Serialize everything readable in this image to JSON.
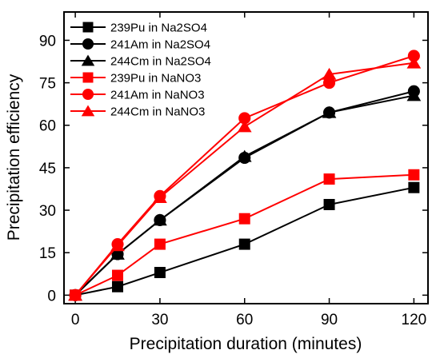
{
  "chart_data": {
    "type": "line",
    "title": "",
    "xlabel": "Precipitation duration (minutes)",
    "ylabel": "Precipitation efficiency",
    "xlim": [
      -4,
      125
    ],
    "ylim": [
      -3,
      100
    ],
    "xticks": [
      0,
      30,
      60,
      90,
      120
    ],
    "yticks": [
      0,
      15,
      30,
      45,
      60,
      75,
      90
    ],
    "x": [
      0,
      15,
      30,
      60,
      90,
      120
    ],
    "grid": false,
    "legend": "top-left",
    "series": [
      {
        "name": "239Pu in Na2SO4",
        "color": "#000000",
        "marker": "square",
        "values": [
          0,
          3,
          8,
          18,
          32,
          38
        ]
      },
      {
        "name": "241Am in Na2SO4",
        "color": "#000000",
        "marker": "circle",
        "values": [
          0,
          14.5,
          26.5,
          48.5,
          64.5,
          72
        ]
      },
      {
        "name": "244Cm in Na2SO4",
        "color": "#000000",
        "marker": "triangle",
        "values": [
          0,
          14.5,
          26.5,
          49,
          64.5,
          70.5
        ]
      },
      {
        "name": "239Pu in NaNO3",
        "color": "#ff0000",
        "marker": "square",
        "values": [
          0,
          7,
          18,
          27,
          41,
          42.5
        ]
      },
      {
        "name": "241Am in NaNO3",
        "color": "#ff0000",
        "marker": "circle",
        "values": [
          0,
          18,
          35,
          62.5,
          75,
          84.5
        ]
      },
      {
        "name": "244Cm in NaNO3",
        "color": "#ff0000",
        "marker": "triangle",
        "values": [
          0,
          17.5,
          34.5,
          59.5,
          78,
          82
        ]
      }
    ]
  }
}
